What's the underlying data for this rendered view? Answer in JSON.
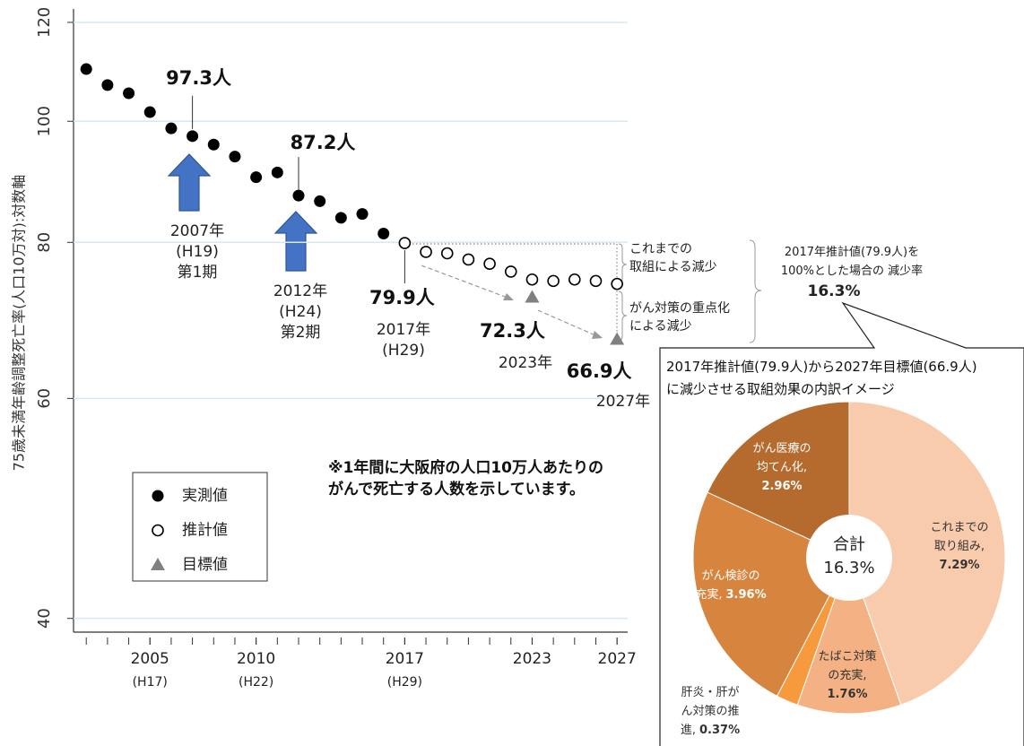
{
  "chart_data": [
    {
      "type": "scatter",
      "y_label": "75歳未満年齢調整死亡率(人口10万対):対数軸",
      "log_y": true,
      "xlim": [
        2001.4,
        2027.5
      ],
      "ylim": [
        39,
        123
      ],
      "yticks": [
        40,
        60,
        80,
        100,
        120
      ],
      "xticks": [
        {
          "value": 2005,
          "label": "2005\n(H17)"
        },
        {
          "value": 2010,
          "label": "2010\n(H22)"
        },
        {
          "value": 2017,
          "label": "2017\n(H29)"
        },
        2023,
        2027
      ],
      "xminor_ticks": [
        2002,
        2003,
        2004,
        2005,
        2006,
        2007,
        2008,
        2009,
        2010,
        2011,
        2012,
        2013,
        2014,
        2015,
        2016,
        2017,
        2018,
        2019,
        2020,
        2021,
        2022,
        2023,
        2024,
        2025,
        2026,
        2027
      ],
      "grid": true,
      "grid_color": "#d9e7f1",
      "series": [
        {
          "name": "実測値",
          "marker": "filled-circle",
          "color": "#000000",
          "x": [
            2002,
            2003,
            2004,
            2005,
            2006,
            2007,
            2008,
            2009,
            2010,
            2011,
            2012,
            2013,
            2014,
            2015,
            2016
          ],
          "values": [
            110.1,
            106.9,
            105.3,
            101.7,
            98.7,
            97.3,
            95.8,
            93.7,
            90.2,
            91.0,
            87.2,
            86.3,
            83.7,
            84.3,
            81.3
          ],
          "value_labels": [
            null,
            null,
            null,
            null,
            null,
            "97.3人",
            null,
            null,
            null,
            null,
            "87.2人",
            null,
            null,
            null,
            null
          ]
        },
        {
          "name": "推計値",
          "marker": "open-circle",
          "color": "#000000",
          "x": [
            2017,
            2018,
            2019,
            2020,
            2021,
            2022,
            2023,
            2024,
            2025,
            2026,
            2027
          ],
          "values": [
            79.9,
            78.6,
            78.4,
            77.5,
            76.9,
            75.8,
            74.7,
            74.5,
            74.7,
            74.5,
            74.1
          ],
          "value_labels": [
            "79.9人",
            null,
            null,
            null,
            null,
            null,
            null,
            null,
            null,
            null,
            null
          ]
        },
        {
          "name": "目標値",
          "marker": "triangle",
          "color": "#808080",
          "x": [
            2023,
            2027
          ],
          "values": [
            72.3,
            66.9
          ],
          "value_labels": [
            "72.3人",
            "66.9人"
          ]
        }
      ],
      "annotations": [
        {
          "text": "2007年\n(H19)\n第1期"
        },
        {
          "text": "2012年\n(H24)\n第2期"
        },
        {
          "text": "2017年\n(H29)"
        },
        {
          "text": "2023年"
        },
        {
          "text": "2027年"
        },
        {
          "text": "これまでの\n取組による減少"
        },
        {
          "text": "がん対策の重点化\nによる減少"
        },
        {
          "text": "2017年推計値(79.9人)を\n100%とした場合の 減少率"
        },
        {
          "text": "16.3%"
        },
        {
          "text": "※1年間に大阪府の人口10万人あたりの\nがんで死亡する人数を示しています。"
        }
      ]
    },
    {
      "type": "donut",
      "title": "2017年推計値(79.9人)から2027年目標値(66.9人)\nに減少させる取組効果の内訳イメージ",
      "center_label": "合計",
      "center_value_label": "16.3%",
      "categories": [
        "これまでの\n取り組み,",
        "たばこ対策\nの充実,",
        "肝炎・肝が\nん対策の推\n進,",
        "がん検診の\n充実,",
        "がん医療の\n均てん化,"
      ],
      "values": [
        7.29,
        1.76,
        0.37,
        3.96,
        2.96
      ],
      "value_labels": [
        "7.29%",
        "1.76%",
        "0.37%",
        "3.96%",
        "2.96%"
      ],
      "colors": [
        "#f8cbad",
        "#f4b183",
        "#f79a3e",
        "#d6843e",
        "#b56a2e"
      ]
    }
  ]
}
